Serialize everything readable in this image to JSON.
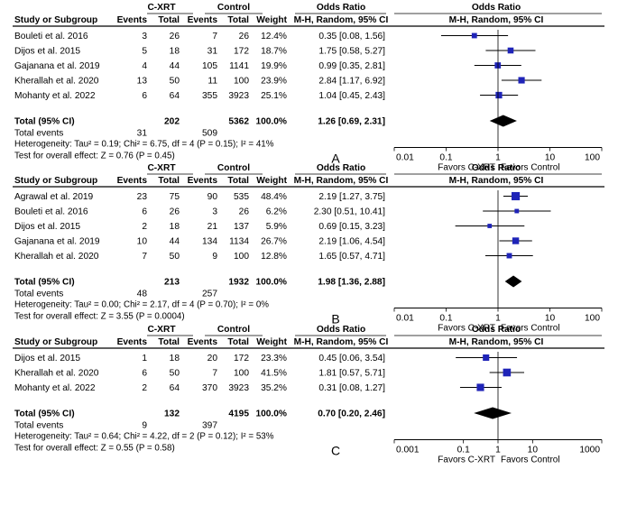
{
  "chart_data": [
    {
      "type": "forest",
      "panel_label": "A",
      "group_headers": {
        "experimental": "C-XRT",
        "control": "Control",
        "or_col": "Odds Ratio",
        "or_plot": "Odds Ratio"
      },
      "columns": [
        "Study or Subgroup",
        "Events",
        "Total",
        "Events",
        "Total",
        "Weight",
        "M-H, Random, 95% CI",
        "M-H, Random, 95% CI"
      ],
      "studies": [
        {
          "name": "Bouleti et al. 2016",
          "e_events": "3",
          "e_total": "26",
          "c_events": "7",
          "c_total": "26",
          "weight": "12.4%",
          "ci_text": "0.35 [0.08, 1.56]",
          "or": 0.35,
          "lo": 0.08,
          "hi": 1.56,
          "w": 12.4
        },
        {
          "name": "Dijos et al. 2015",
          "e_events": "5",
          "e_total": "18",
          "c_events": "31",
          "c_total": "172",
          "weight": "18.7%",
          "ci_text": "1.75 [0.58, 5.27]",
          "or": 1.75,
          "lo": 0.58,
          "hi": 5.27,
          "w": 18.7
        },
        {
          "name": "Gajanana et al. 2019",
          "e_events": "4",
          "e_total": "44",
          "c_events": "105",
          "c_total": "1141",
          "weight": "19.9%",
          "ci_text": "0.99 [0.35, 2.81]",
          "or": 0.99,
          "lo": 0.35,
          "hi": 2.81,
          "w": 19.9
        },
        {
          "name": "Kherallah et al. 2020",
          "e_events": "13",
          "e_total": "50",
          "c_events": "11",
          "c_total": "100",
          "weight": "23.9%",
          "ci_text": "2.84 [1.17, 6.92]",
          "or": 2.84,
          "lo": 1.17,
          "hi": 6.92,
          "w": 23.9
        },
        {
          "name": "Mohanty et al. 2022",
          "e_events": "6",
          "e_total": "64",
          "c_events": "355",
          "c_total": "3923",
          "weight": "25.1%",
          "ci_text": "1.04 [0.45, 2.43]",
          "or": 1.04,
          "lo": 0.45,
          "hi": 2.43,
          "w": 25.1
        }
      ],
      "total": {
        "label": "Total (95% CI)",
        "e_total": "202",
        "c_total": "5362",
        "weight": "100.0%",
        "ci_text": "1.26 [0.69, 2.31]",
        "or": 1.26,
        "lo": 0.69,
        "hi": 2.31
      },
      "total_events": {
        "label": "Total events",
        "e": "31",
        "c": "509"
      },
      "heterogeneity": "Heterogeneity: Tau² = 0.19; Chi² = 6.75, df = 4 (P = 0.15); I² = 41%",
      "overall_effect": "Test for overall effect: Z = 0.76 (P = 0.45)",
      "axis": {
        "scale": "log",
        "ticks": [
          0.01,
          0.1,
          1,
          10,
          100
        ],
        "tick_labels": [
          "0.01",
          "0.1",
          "1",
          "10",
          "100"
        ],
        "favors_left": "Favors C-XRT",
        "favors_right": "Favors Control"
      }
    },
    {
      "type": "forest",
      "panel_label": "B",
      "group_headers": {
        "experimental": "C-XRT",
        "control": "Control",
        "or_col": "Odds Ratio",
        "or_plot": "Odds Ratio"
      },
      "columns": [
        "Study or Subgroup",
        "Events",
        "Total",
        "Events",
        "Total",
        "Weight",
        "M-H, Random, 95% CI",
        "M-H, Random, 95% CI"
      ],
      "studies": [
        {
          "name": "Agrawal et al. 2019",
          "e_events": "23",
          "e_total": "75",
          "c_events": "90",
          "c_total": "535",
          "weight": "48.4%",
          "ci_text": "2.19 [1.27, 3.75]",
          "or": 2.19,
          "lo": 1.27,
          "hi": 3.75,
          "w": 48.4
        },
        {
          "name": "Bouleti et al. 2016",
          "e_events": "6",
          "e_total": "26",
          "c_events": "3",
          "c_total": "26",
          "weight": "6.2%",
          "ci_text": "2.30 [0.51, 10.41]",
          "or": 2.3,
          "lo": 0.51,
          "hi": 10.41,
          "w": 6.2
        },
        {
          "name": "Dijos et al. 2015",
          "e_events": "2",
          "e_total": "18",
          "c_events": "21",
          "c_total": "137",
          "weight": "5.9%",
          "ci_text": "0.69 [0.15, 3.23]",
          "or": 0.69,
          "lo": 0.15,
          "hi": 3.23,
          "w": 5.9
        },
        {
          "name": "Gajanana et al. 2019",
          "e_events": "10",
          "e_total": "44",
          "c_events": "134",
          "c_total": "1134",
          "weight": "26.7%",
          "ci_text": "2.19 [1.06, 4.54]",
          "or": 2.19,
          "lo": 1.06,
          "hi": 4.54,
          "w": 26.7
        },
        {
          "name": "Kherallah et al. 2020",
          "e_events": "7",
          "e_total": "50",
          "c_events": "9",
          "c_total": "100",
          "weight": "12.8%",
          "ci_text": "1.65 [0.57, 4.71]",
          "or": 1.65,
          "lo": 0.57,
          "hi": 4.71,
          "w": 12.8
        }
      ],
      "total": {
        "label": "Total (95% CI)",
        "e_total": "213",
        "c_total": "1932",
        "weight": "100.0%",
        "ci_text": "1.98 [1.36, 2.88]",
        "or": 1.98,
        "lo": 1.36,
        "hi": 2.88
      },
      "total_events": {
        "label": "Total events",
        "e": "48",
        "c": "257"
      },
      "heterogeneity": "Heterogeneity: Tau² = 0.00; Chi² = 2.17, df = 4 (P = 0.70); I² = 0%",
      "overall_effect": "Test for overall effect: Z = 3.55 (P = 0.0004)",
      "axis": {
        "scale": "log",
        "ticks": [
          0.01,
          0.1,
          1,
          10,
          100
        ],
        "tick_labels": [
          "0.01",
          "0.1",
          "1",
          "10",
          "100"
        ],
        "favors_left": "Favors C-XRT",
        "favors_right": "Favors Control"
      }
    },
    {
      "type": "forest",
      "panel_label": "C",
      "group_headers": {
        "experimental": "C-XRT",
        "control": "Control",
        "or_col": "Odds Ratio",
        "or_plot": "Odds Ratio"
      },
      "columns": [
        "Study or Subgroup",
        "Events",
        "Total",
        "Events",
        "Total",
        "Weight",
        "M-H, Random, 95% CI",
        "M-H, Random, 95% CI"
      ],
      "studies": [
        {
          "name": "Dijos et al. 2015",
          "e_events": "1",
          "e_total": "18",
          "c_events": "20",
          "c_total": "172",
          "weight": "23.3%",
          "ci_text": "0.45 [0.06, 3.54]",
          "or": 0.45,
          "lo": 0.06,
          "hi": 3.54,
          "w": 23.3
        },
        {
          "name": "Kherallah et al. 2020",
          "e_events": "6",
          "e_total": "50",
          "c_events": "7",
          "c_total": "100",
          "weight": "41.5%",
          "ci_text": "1.81 [0.57, 5.71]",
          "or": 1.81,
          "lo": 0.57,
          "hi": 5.71,
          "w": 41.5
        },
        {
          "name": "Mohanty et al. 2022",
          "e_events": "2",
          "e_total": "64",
          "c_events": "370",
          "c_total": "3923",
          "weight": "35.2%",
          "ci_text": "0.31 [0.08, 1.27]",
          "or": 0.31,
          "lo": 0.08,
          "hi": 1.27,
          "w": 35.2
        }
      ],
      "total": {
        "label": "Total (95% CI)",
        "e_total": "132",
        "c_total": "4195",
        "weight": "100.0%",
        "ci_text": "0.70 [0.20, 2.46]",
        "or": 0.7,
        "lo": 0.2,
        "hi": 2.46
      },
      "total_events": {
        "label": "Total events",
        "e": "9",
        "c": "397"
      },
      "heterogeneity": "Heterogeneity: Tau² = 0.64; Chi² = 4.22, df = 2 (P = 0.12); I² = 53%",
      "overall_effect": "Test for overall effect: Z = 0.55 (P = 0.58)",
      "axis": {
        "scale": "log",
        "ticks": [
          0.001,
          0.1,
          1,
          10,
          1000
        ],
        "tick_positions": [
          0.001,
          0.1,
          1,
          10,
          1000
        ],
        "tick_labels": [
          "0.001",
          "0.1",
          "1",
          "10",
          "1000"
        ],
        "favors_left": "Favors C-XRT",
        "favors_right": "Favors Control"
      }
    }
  ],
  "colors": {
    "marker": "#1f24b8",
    "diamond": "#000000",
    "line": "#000000",
    "text": "#000000"
  }
}
